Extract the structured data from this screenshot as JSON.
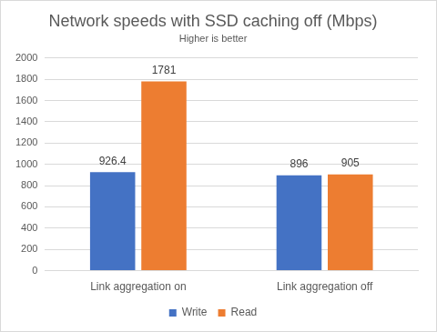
{
  "chart_data": {
    "type": "bar",
    "title": "Network speeds with SSD caching off (Mbps)",
    "subtitle": "Higher is better",
    "categories": [
      "Link aggregation on",
      "Link aggregation off"
    ],
    "series": [
      {
        "name": "Write",
        "color": "#4472c4",
        "values": [
          926.4,
          896
        ]
      },
      {
        "name": "Read",
        "color": "#ed7d31",
        "values": [
          1781,
          905
        ]
      }
    ],
    "ylim": [
      0,
      2000
    ],
    "yticks": [
      0,
      200,
      400,
      600,
      800,
      1000,
      1200,
      1400,
      1600,
      1800,
      2000
    ],
    "grid": true,
    "legend": "bottom",
    "data_labels": true
  }
}
